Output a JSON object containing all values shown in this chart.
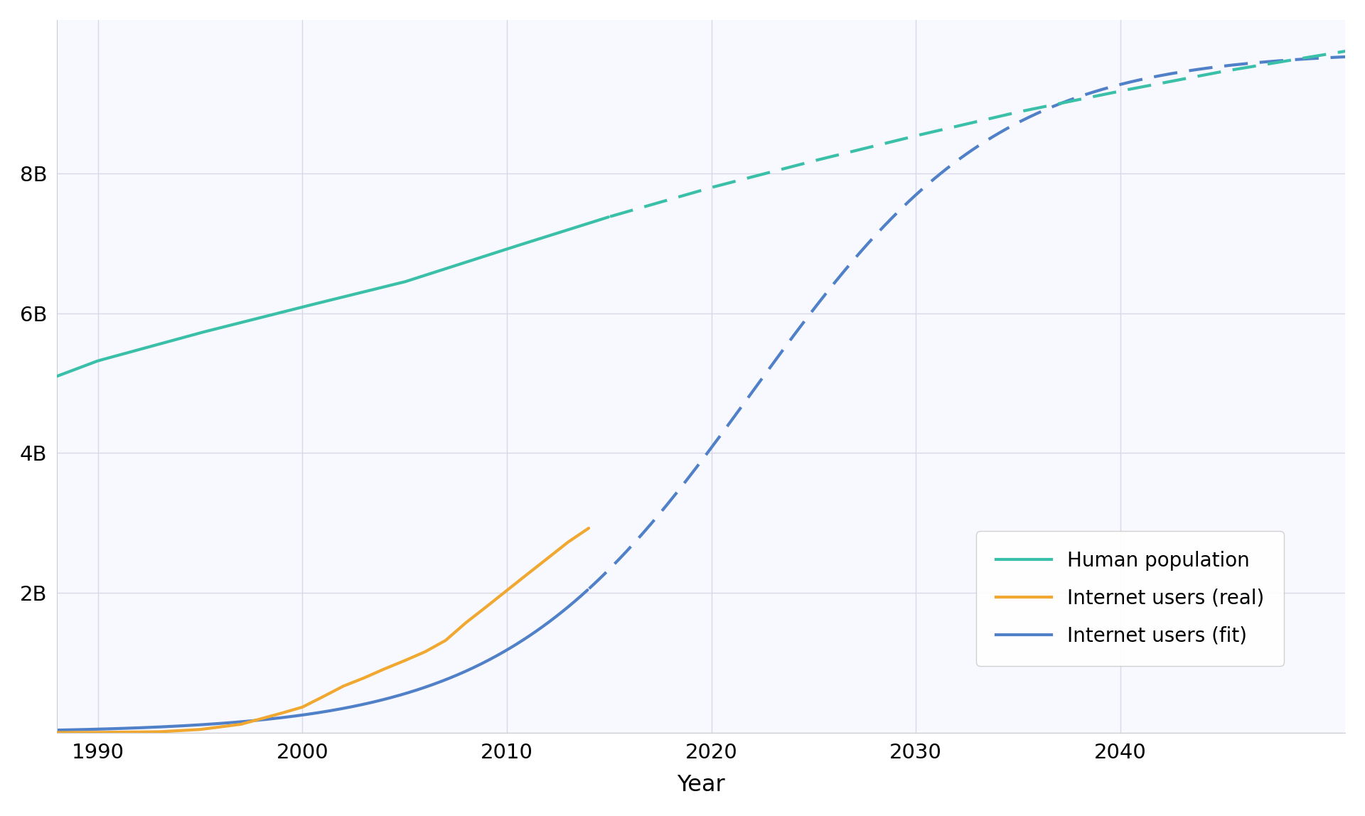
{
  "title": "",
  "xlabel": "Year",
  "ylabel": "",
  "background_color": "#ffffff",
  "plot_background_color": "#f8f8ff",
  "grid_color": "#d8d8e8",
  "teal_color": "#3abfa8",
  "orange_color": "#f0a830",
  "blue_color": "#5080c8",
  "xmin": 1988,
  "xmax": 2051,
  "ymin": 0,
  "ymax": 10200000000.0,
  "yticks": [
    0,
    2000000000.0,
    4000000000.0,
    6000000000.0,
    8000000000.0
  ],
  "ytick_labels": [
    "",
    "2B",
    "4B",
    "6B",
    "8B"
  ],
  "xticks": [
    1990,
    2000,
    2010,
    2020,
    2030,
    2040
  ],
  "legend_labels": [
    "Human population",
    "Internet users (real)",
    "Internet users (fit)"
  ],
  "pop_solid_end_year": 2015,
  "internet_real_end_year": 2014,
  "line_width": 3.0,
  "pop_anchors_years": [
    1988,
    1990,
    1995,
    2000,
    2005,
    2010,
    2015,
    2020,
    2025,
    2030,
    2035,
    2040,
    2045,
    2051
  ],
  "pop_anchors_vals": [
    5.1,
    5.32,
    5.72,
    6.09,
    6.45,
    6.92,
    7.38,
    7.8,
    8.18,
    8.54,
    8.88,
    9.18,
    9.46,
    9.75
  ],
  "internet_real_years": [
    1988,
    1990,
    1993,
    1995,
    1997,
    1999,
    2000,
    2001,
    2002,
    2003,
    2004,
    2005,
    2006,
    2007,
    2008,
    2009,
    2010,
    2011,
    2012,
    2013,
    2014
  ],
  "internet_real_vals": [
    0.001,
    0.003,
    0.012,
    0.045,
    0.12,
    0.28,
    0.365,
    0.513,
    0.665,
    0.781,
    0.91,
    1.03,
    1.157,
    1.319,
    1.574,
    1.802,
    2.035,
    2.267,
    2.497,
    2.728,
    2.925
  ],
  "fit_L": 9.75,
  "fit_k": 0.165,
  "fit_x0": 2022
}
